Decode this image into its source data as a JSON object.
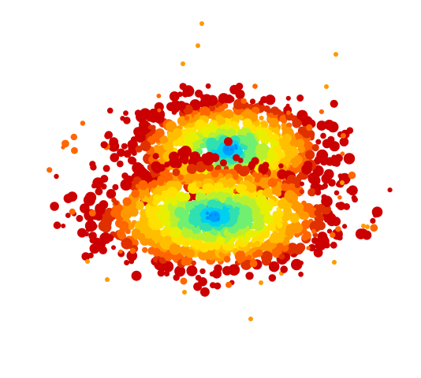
{
  "figure": {
    "background": "#ffffff",
    "palette": [
      "#cc0000",
      "#e03000",
      "#ff6600",
      "#ff9900",
      "#ffbf00",
      "#ffe000",
      "#e8f000",
      "#b8f030",
      "#70f070",
      "#30e0b0",
      "#00d0f0",
      "#00a0ff"
    ],
    "clusters": [
      {
        "name": "upper-cluster",
        "seed": 11
      },
      {
        "name": "lower-cluster",
        "seed": 23
      }
    ],
    "scatter": {
      "seed": 7
    }
  }
}
